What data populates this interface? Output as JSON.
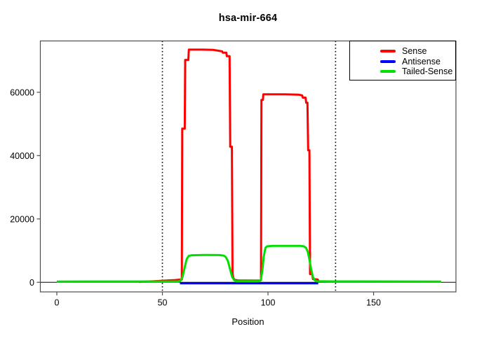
{
  "title": "hsa-mir-664",
  "chart_data": {
    "type": "line",
    "title": "hsa-mir-664",
    "xlabel": "Position",
    "ylabel": "",
    "grid": false,
    "x_ticks": [
      0,
      50,
      100,
      150
    ],
    "y_ticks": [
      0,
      20000,
      40000,
      60000
    ],
    "xlim": [
      -7.8,
      189.0
    ],
    "ylim": [
      -3030,
      76200
    ],
    "zero_line": 0,
    "vlines": {
      "style": "dotted",
      "color": "#000000",
      "positions": [
        50,
        132
      ]
    },
    "legend": {
      "position": "topright",
      "entries": [
        {
          "label": "Sense",
          "color": "#ff0000"
        },
        {
          "label": "Antisense",
          "color": "#0000ff"
        },
        {
          "label": "Tailed-Sense",
          "color": "#00e000"
        }
      ]
    },
    "series": [
      {
        "name": "Sense",
        "color": "#ff0000",
        "points": [
          [
            39,
            100
          ],
          [
            41,
            200
          ],
          [
            46,
            350
          ],
          [
            52,
            550
          ],
          [
            56,
            700
          ],
          [
            58.6,
            850
          ],
          [
            59.2,
            900
          ],
          [
            59.4,
            48500
          ],
          [
            60.6,
            48500
          ],
          [
            60.8,
            70200
          ],
          [
            62.3,
            70200
          ],
          [
            62.5,
            73450
          ],
          [
            69,
            73450
          ],
          [
            74,
            73400
          ],
          [
            78.3,
            72900
          ],
          [
            78.6,
            72500
          ],
          [
            80.3,
            72500
          ],
          [
            80.5,
            71400
          ],
          [
            81.8,
            71400
          ],
          [
            82.1,
            42800
          ],
          [
            82.9,
            42800
          ],
          [
            83.2,
            2600
          ],
          [
            83.6,
            1300
          ],
          [
            84.2,
            800
          ],
          [
            86,
            550
          ],
          [
            95.8,
            520
          ],
          [
            96.7,
            650
          ],
          [
            96.9,
            57600
          ],
          [
            97.6,
            57600
          ],
          [
            97.8,
            59350
          ],
          [
            108,
            59350
          ],
          [
            114.5,
            59250
          ],
          [
            116.2,
            59000
          ],
          [
            116.5,
            58300
          ],
          [
            117.8,
            58300
          ],
          [
            118.1,
            56700
          ],
          [
            118.7,
            56700
          ],
          [
            119,
            41700
          ],
          [
            119.6,
            41700
          ],
          [
            119.9,
            2600
          ],
          [
            120.9,
            2600
          ],
          [
            121.3,
            1000
          ],
          [
            123.5,
            900
          ],
          [
            124.2,
            150
          ]
        ]
      },
      {
        "name": "Antisense",
        "color": "#0000ff",
        "points": [
          [
            58.3,
            -330
          ],
          [
            123.8,
            -330
          ]
        ]
      },
      {
        "name": "Tailed-Sense",
        "color": "#00e000",
        "points": [
          [
            0,
            230
          ],
          [
            50,
            260
          ],
          [
            57.5,
            280
          ],
          [
            58.5,
            450
          ],
          [
            59.5,
            1600
          ],
          [
            60.5,
            4500
          ],
          [
            61.5,
            7300
          ],
          [
            62.5,
            8350
          ],
          [
            64,
            8550
          ],
          [
            70,
            8620
          ],
          [
            77,
            8600
          ],
          [
            79,
            8450
          ],
          [
            80,
            8000
          ],
          [
            81,
            6800
          ],
          [
            82,
            4200
          ],
          [
            83,
            1700
          ],
          [
            84,
            650
          ],
          [
            85,
            340
          ],
          [
            95.8,
            340
          ],
          [
            96.6,
            750
          ],
          [
            97.3,
            3600
          ],
          [
            98,
            8100
          ],
          [
            98.8,
            10900
          ],
          [
            99.6,
            11350
          ],
          [
            102,
            11480
          ],
          [
            112,
            11520
          ],
          [
            115.5,
            11480
          ],
          [
            117,
            11350
          ],
          [
            118,
            10900
          ],
          [
            118.8,
            9700
          ],
          [
            119.6,
            7200
          ],
          [
            120.4,
            4200
          ],
          [
            121.2,
            1800
          ],
          [
            122,
            750
          ],
          [
            122.8,
            340
          ],
          [
            130,
            280
          ],
          [
            182,
            250
          ]
        ]
      }
    ]
  }
}
